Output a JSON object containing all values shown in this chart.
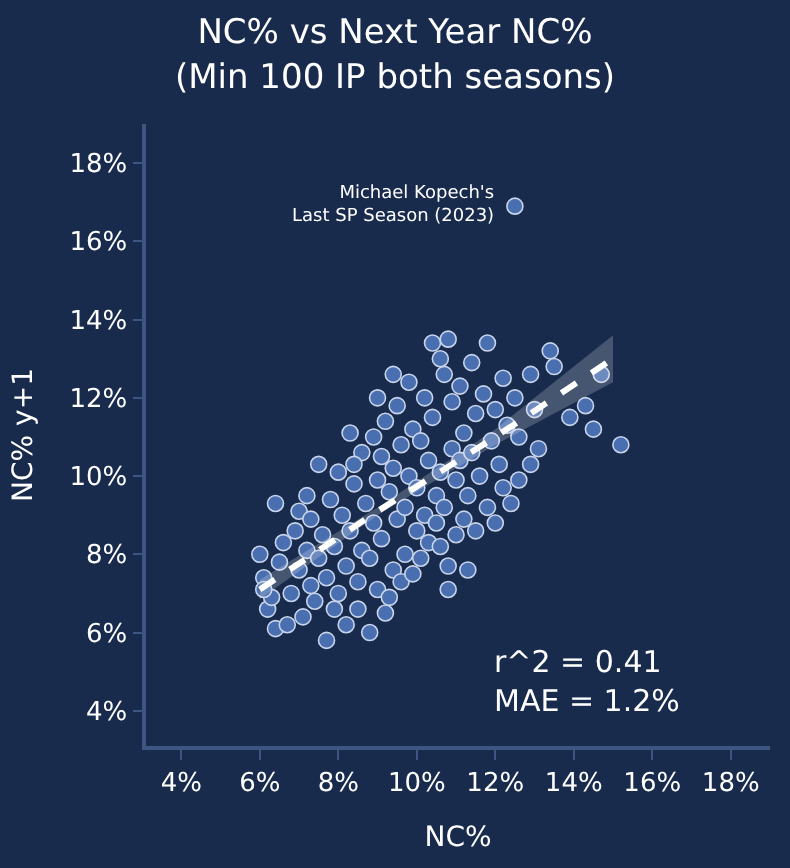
{
  "chart_data": {
    "type": "scatter",
    "title": "NC% vs Next Year NC%\n(Min 100 IP both seasons)",
    "xlabel": "NC%",
    "ylabel": "NC% y+1",
    "xlim": [
      3.1,
      19
    ],
    "ylim": [
      3.1,
      19
    ],
    "xticks": [
      {
        "value": 4,
        "label": "4%"
      },
      {
        "value": 6,
        "label": "6%"
      },
      {
        "value": 8,
        "label": "8%"
      },
      {
        "value": 10,
        "label": "10%"
      },
      {
        "value": 12,
        "label": "12%"
      },
      {
        "value": 14,
        "label": "14%"
      },
      {
        "value": 16,
        "label": "16%"
      },
      {
        "value": 18,
        "label": "18%"
      }
    ],
    "yticks": [
      {
        "value": 4,
        "label": "4%"
      },
      {
        "value": 6,
        "label": "6%"
      },
      {
        "value": 8,
        "label": "8%"
      },
      {
        "value": 10,
        "label": "10%"
      },
      {
        "value": 12,
        "label": "12%"
      },
      {
        "value": 14,
        "label": "14%"
      },
      {
        "value": 16,
        "label": "16%"
      },
      {
        "value": 18,
        "label": "18%"
      }
    ],
    "grid": false,
    "series": [
      {
        "color": "#4a6fb0",
        "marker": "circle",
        "x": [
          6.0,
          6.1,
          6.2,
          6.3,
          6.4,
          6.4,
          6.5,
          6.6,
          6.7,
          6.8,
          6.9,
          7.0,
          7.0,
          7.1,
          7.2,
          7.3,
          7.3,
          7.4,
          7.5,
          7.5,
          7.6,
          7.7,
          7.7,
          7.8,
          7.9,
          7.9,
          8.0,
          8.0,
          8.1,
          8.2,
          8.2,
          8.3,
          8.3,
          8.4,
          8.5,
          8.5,
          8.6,
          8.6,
          8.7,
          8.8,
          8.8,
          8.9,
          8.9,
          9.0,
          9.0,
          9.1,
          9.1,
          9.2,
          9.2,
          9.3,
          9.3,
          9.4,
          9.4,
          9.5,
          9.5,
          9.6,
          9.6,
          9.7,
          9.7,
          9.8,
          9.8,
          9.9,
          9.9,
          10.0,
          10.0,
          10.1,
          10.1,
          10.2,
          10.2,
          10.3,
          10.3,
          10.4,
          10.4,
          10.5,
          10.5,
          10.6,
          10.6,
          10.7,
          10.7,
          10.8,
          10.8,
          10.8,
          10.9,
          10.9,
          11.0,
          11.0,
          11.1,
          11.1,
          11.2,
          11.2,
          11.3,
          11.4,
          11.4,
          11.5,
          11.5,
          11.6,
          11.7,
          11.8,
          11.8,
          11.9,
          12.0,
          12.0,
          12.1,
          12.2,
          12.3,
          12.4,
          12.5,
          12.5,
          12.6,
          12.6,
          12.9,
          12.9,
          13.0,
          13.1,
          13.4,
          13.9,
          14.5,
          14.7,
          15.2,
          6.1,
          7.2,
          8.4,
          9.0,
          9.4,
          10.6,
          11.3,
          12.2,
          13.5,
          14.3
        ],
        "values": [
          8.0,
          7.4,
          6.6,
          6.9,
          6.1,
          9.3,
          7.8,
          8.3,
          6.2,
          7.0,
          8.6,
          7.6,
          9.1,
          6.4,
          8.1,
          7.2,
          8.9,
          6.8,
          10.3,
          7.9,
          8.5,
          5.8,
          7.4,
          9.4,
          6.6,
          8.2,
          10.1,
          7.0,
          9.0,
          6.2,
          7.7,
          11.1,
          8.6,
          9.8,
          6.6,
          7.3,
          8.1,
          10.6,
          9.3,
          6.0,
          7.9,
          11.0,
          8.8,
          9.9,
          7.1,
          10.5,
          8.4,
          6.5,
          11.4,
          6.9,
          9.6,
          7.6,
          10.2,
          8.9,
          11.8,
          7.3,
          10.8,
          9.2,
          8.0,
          12.4,
          10.0,
          7.5,
          11.2,
          8.6,
          9.7,
          10.9,
          7.9,
          12.0,
          9.0,
          8.3,
          10.4,
          13.4,
          11.5,
          9.5,
          8.8,
          8.2,
          10.1,
          12.6,
          9.2,
          13.5,
          7.7,
          7.1,
          10.7,
          11.9,
          8.5,
          9.9,
          12.3,
          10.4,
          8.9,
          11.1,
          9.5,
          12.9,
          10.6,
          8.6,
          11.6,
          10.0,
          12.1,
          13.4,
          9.2,
          10.9,
          11.7,
          8.8,
          10.3,
          9.7,
          11.3,
          9.3,
          16.9,
          12.0,
          9.9,
          11.0,
          10.3,
          12.6,
          11.7,
          10.7,
          13.2,
          11.5,
          11.2,
          12.6,
          10.8,
          7.1,
          9.5,
          10.3,
          12.0,
          12.6,
          13.0,
          7.6,
          12.5,
          12.8,
          11.8
        ]
      },
      {
        "type": "line",
        "color": "#ffffff",
        "line_style": "dashed",
        "marker": "none",
        "x": [
          6,
          9,
          12,
          15
        ],
        "values": [
          7.1,
          9.1,
          11.0,
          13.0
        ],
        "lower": [
          6.85,
          9.0,
          10.8,
          12.4
        ],
        "upper": [
          7.35,
          9.2,
          11.2,
          13.6
        ]
      }
    ],
    "annotations": [
      {
        "text": "Michael Kopech's\nLast SP Season (2023)",
        "x": 12.5,
        "y": 16.9
      },
      "r^2 = 0.41\nMAE = 1.2%"
    ]
  }
}
